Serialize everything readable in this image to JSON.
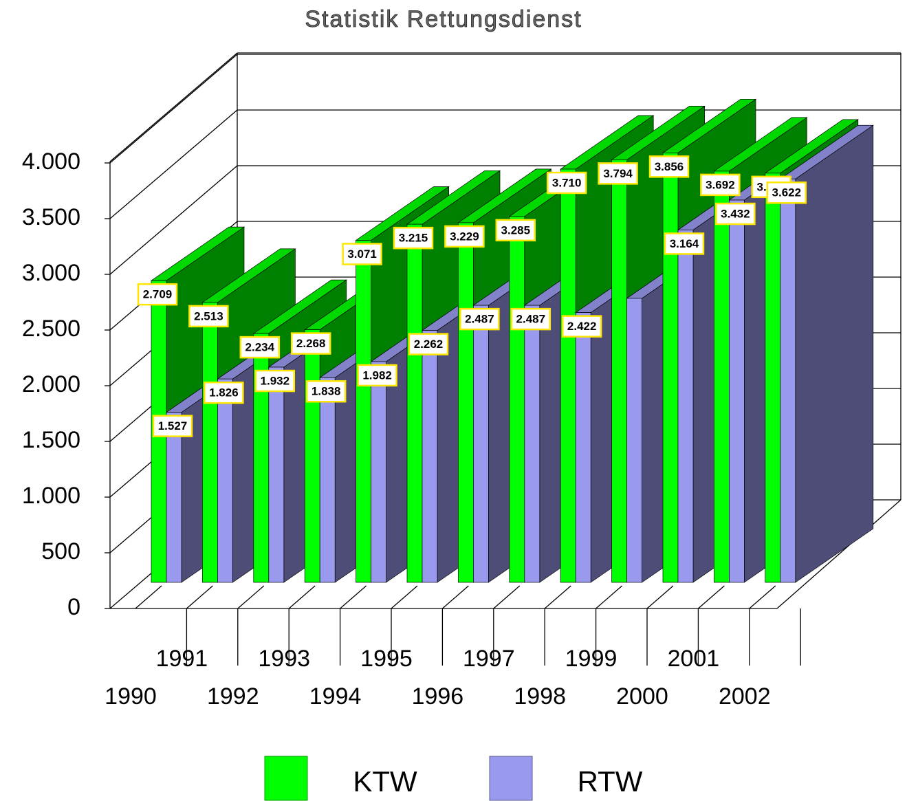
{
  "chart_data": {
    "type": "bar3d",
    "title": "Statistik Rettungsdienst",
    "categories": [
      "1990",
      "1991",
      "1992",
      "1993",
      "1994",
      "1995",
      "1996",
      "1997",
      "1998",
      "1999",
      "2000",
      "2001",
      "2002"
    ],
    "series": [
      {
        "name": "KTW",
        "color": "#00ff00",
        "values": [
          2709,
          2513,
          2234,
          2268,
          3071,
          3215,
          3229,
          3285,
          3710,
          3794,
          3856,
          3692,
          3674
        ],
        "value_labels": [
          "2.709",
          "2.513",
          "2.234",
          "2.268",
          "3.071",
          "3.215",
          "3.229",
          "3.285",
          "3.710",
          "3.794",
          "3.856",
          "3.692",
          "3.674"
        ]
      },
      {
        "name": "RTW",
        "color": "#9999ee",
        "values": [
          1527,
          1826,
          1932,
          1838,
          1982,
          2262,
          2487,
          2487,
          2422,
          2550,
          3164,
          3432,
          3622
        ],
        "value_labels": [
          "1.527",
          "1.826",
          "1.932",
          "1.838",
          "1.982",
          "2.262",
          "2.487",
          "2.487",
          "2.422",
          null,
          "3.164",
          "3.432",
          "3.622"
        ]
      }
    ],
    "ylim": [
      0,
      4000
    ],
    "yticks": [
      0,
      500,
      {
        "value": 1000,
        "label": "1.000"
      },
      {
        "value": 1500,
        "label": "1.500"
      },
      {
        "value": 2000,
        "label": "2.000"
      },
      {
        "value": 2500,
        "label": "2.500"
      },
      {
        "value": 3000,
        "label": "3.000"
      },
      {
        "value": 3500,
        "label": "3.500"
      },
      {
        "value": 4000,
        "label": "4.000"
      }
    ],
    "grid": true
  }
}
